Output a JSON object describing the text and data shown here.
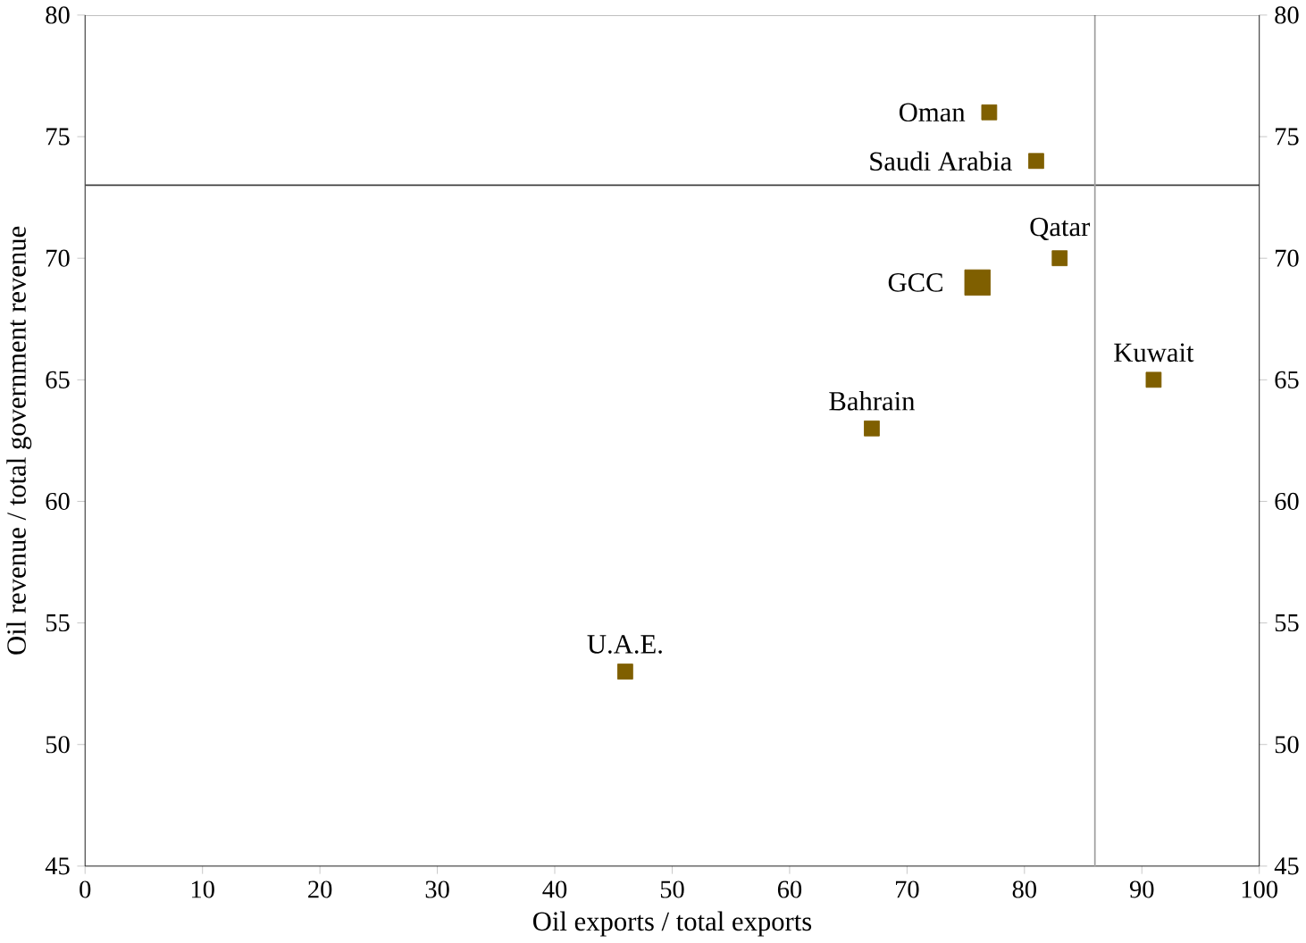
{
  "chart_data": {
    "type": "bubble",
    "xlabel": "Oil exports / total exports",
    "ylabel": "Oil revenue / total government revenue",
    "x": [
      77,
      81,
      83,
      76,
      91,
      67,
      46
    ],
    "values": [
      76,
      74,
      70,
      69,
      65,
      63,
      53
    ],
    "sizes": [
      0.35,
      0.35,
      0.35,
      1,
      0.35,
      0.35,
      0.35
    ],
    "color": "#7f5f00",
    "marker": "square",
    "xlim": [
      0,
      100
    ],
    "xticks": [
      0,
      10,
      20,
      30,
      40,
      50,
      60,
      70,
      80,
      90,
      100
    ],
    "ylim": [
      45,
      80
    ],
    "yticks": [
      45,
      50,
      55,
      60,
      65,
      70,
      75,
      80
    ],
    "y2lim": [
      45,
      80
    ],
    "y2ticks": [
      45,
      50,
      55,
      60,
      65,
      70,
      75,
      80
    ],
    "grid": false,
    "ref_lines": [
      {
        "axis": "y",
        "value": 73,
        "color": "#404040"
      },
      {
        "axis": "x",
        "value": 86,
        "color": "#a0a0a0"
      }
    ],
    "annotations": [
      {
        "text": "Oman",
        "x": 77,
        "y": 76
      },
      {
        "text": "Saudi Arabia",
        "x": 81,
        "y": 74
      },
      {
        "text": "Qatar",
        "x": 83,
        "y": 70
      },
      {
        "text": "GCC",
        "x": 76,
        "y": 69
      },
      {
        "text": "Kuwait",
        "x": 91,
        "y": 65
      },
      {
        "text": "Bahrain",
        "x": 67,
        "y": 63
      },
      {
        "text": "U.A.E.",
        "x": 46,
        "y": 53
      }
    ]
  }
}
